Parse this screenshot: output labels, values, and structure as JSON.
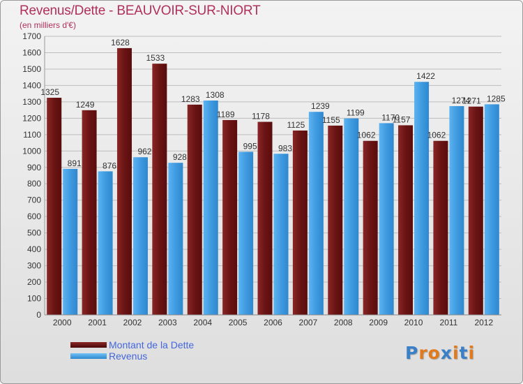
{
  "title": "Revenus/Dette - BEAUVOIR-SUR-NIORT",
  "subtitle": "(en milliers d'€)",
  "colors": {
    "dette": "#7a1c1c",
    "revenus": "#4aa3e6",
    "title": "#b0305a",
    "legend_text": "#4466dd"
  },
  "logo": {
    "text": "Proxiti",
    "letter_colors": [
      "#3a80c8",
      "#e07a1c",
      "#e07a1c",
      "#3a80c8",
      "#e07a1c",
      "#3a80c8",
      "#e07a1c"
    ]
  },
  "chart_data": {
    "type": "bar",
    "categories": [
      "2000",
      "2001",
      "2002",
      "2003",
      "2004",
      "2005",
      "2006",
      "2007",
      "2008",
      "2009",
      "2010",
      "2011",
      "2012"
    ],
    "series": [
      {
        "name": "Montant de la Dette",
        "values": [
          1325,
          1249,
          1628,
          1533,
          1283,
          1189,
          1178,
          1125,
          1155,
          1062,
          1157,
          1062,
          1271
        ]
      },
      {
        "name": "Revenus",
        "values": [
          891,
          876,
          962,
          928,
          1308,
          995,
          983,
          1239,
          1199,
          1170,
          1422,
          1274,
          1285
        ]
      }
    ],
    "ylim": [
      0,
      1700
    ],
    "yticks": [
      0,
      100,
      200,
      300,
      400,
      500,
      600,
      700,
      800,
      900,
      1000,
      1100,
      1200,
      1300,
      1400,
      1500,
      1600,
      1700
    ],
    "xlabel": "",
    "ylabel": "",
    "grid": true,
    "legend": "bottom-left"
  }
}
